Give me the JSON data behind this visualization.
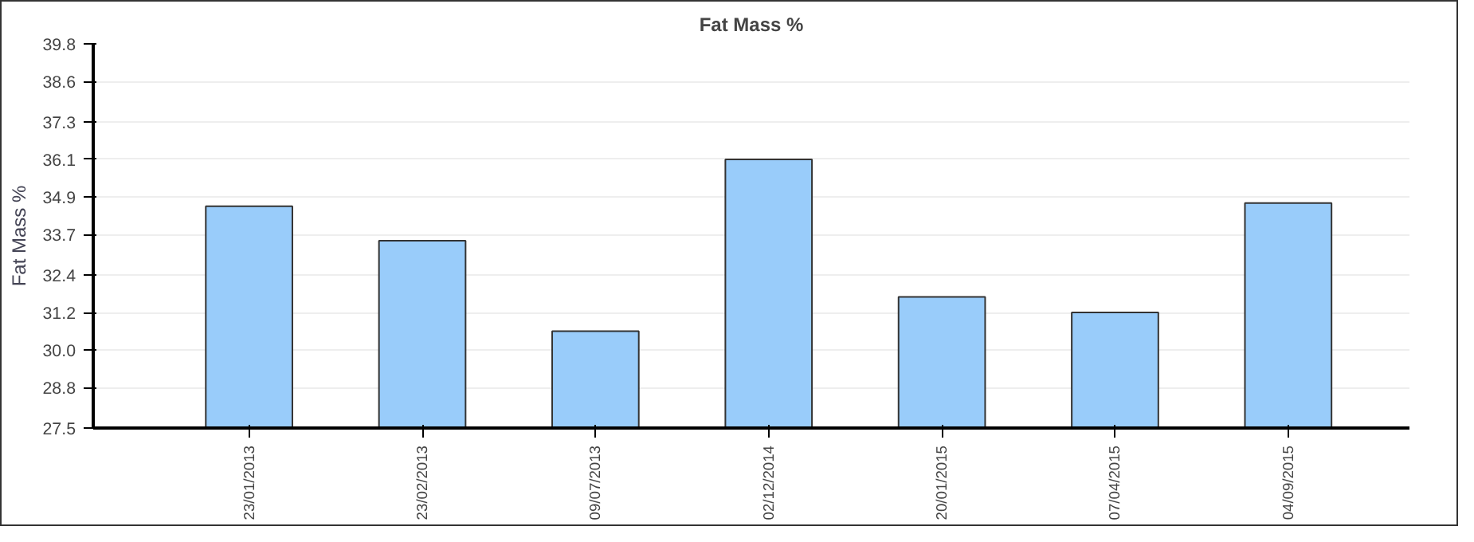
{
  "chart_data": {
    "type": "bar",
    "title": "Fat Mass %",
    "ylabel": "Fat Mass %",
    "categories": [
      "23/01/2013",
      "23/02/2013",
      "09/07/2013",
      "02/12/2014",
      "20/01/2015",
      "07/04/2015",
      "04/09/2015"
    ],
    "values": [
      34.6,
      33.5,
      30.6,
      36.1,
      31.7,
      31.2,
      34.7
    ],
    "color": "#99ccfa",
    "ylim": [
      27.5,
      39.8
    ],
    "yticks": [
      27.5,
      28.8,
      {
        "value": 30,
        "label": "30.0"
      },
      31.2,
      32.4,
      33.7,
      34.9,
      36.1,
      37.3,
      38.6,
      39.8
    ],
    "grid": "y"
  }
}
